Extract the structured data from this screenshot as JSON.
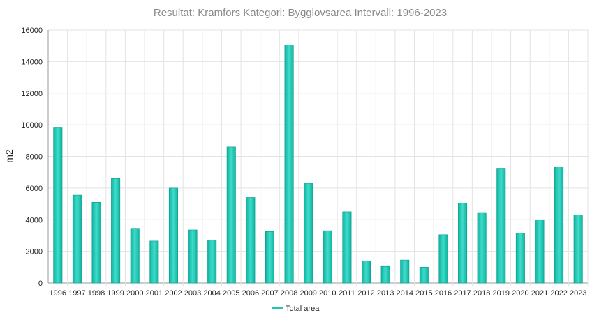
{
  "chart_data": {
    "type": "bar",
    "title": "Resultat: Kramfors Kategori: Bygglovsarea Intervall: 1996-2023",
    "xlabel": "",
    "ylabel": "m2",
    "ylim": [
      0,
      16000
    ],
    "yticks": [
      "0",
      "2000",
      "4000",
      "6000",
      "8000",
      "10000",
      "12000",
      "14000",
      "16000"
    ],
    "grid": true,
    "legend_position": "bottom",
    "categories": [
      "1996",
      "1997",
      "1998",
      "1999",
      "2000",
      "2001",
      "2002",
      "2003",
      "2004",
      "2005",
      "2006",
      "2007",
      "2008",
      "2009",
      "2010",
      "2011",
      "2012",
      "2013",
      "2014",
      "2015",
      "2016",
      "2017",
      "2018",
      "2019",
      "2020",
      "2021",
      "2022",
      "2023"
    ],
    "series": [
      {
        "name": "Total area",
        "color": "#1fc6b4",
        "values": [
          9850,
          5550,
          5100,
          6600,
          3450,
          2650,
          6000,
          3350,
          2700,
          8600,
          5400,
          3250,
          15050,
          6300,
          3300,
          4500,
          1400,
          1050,
          1450,
          1000,
          3050,
          5050,
          4450,
          7250,
          3150,
          4000,
          7350,
          4300
        ]
      }
    ]
  }
}
